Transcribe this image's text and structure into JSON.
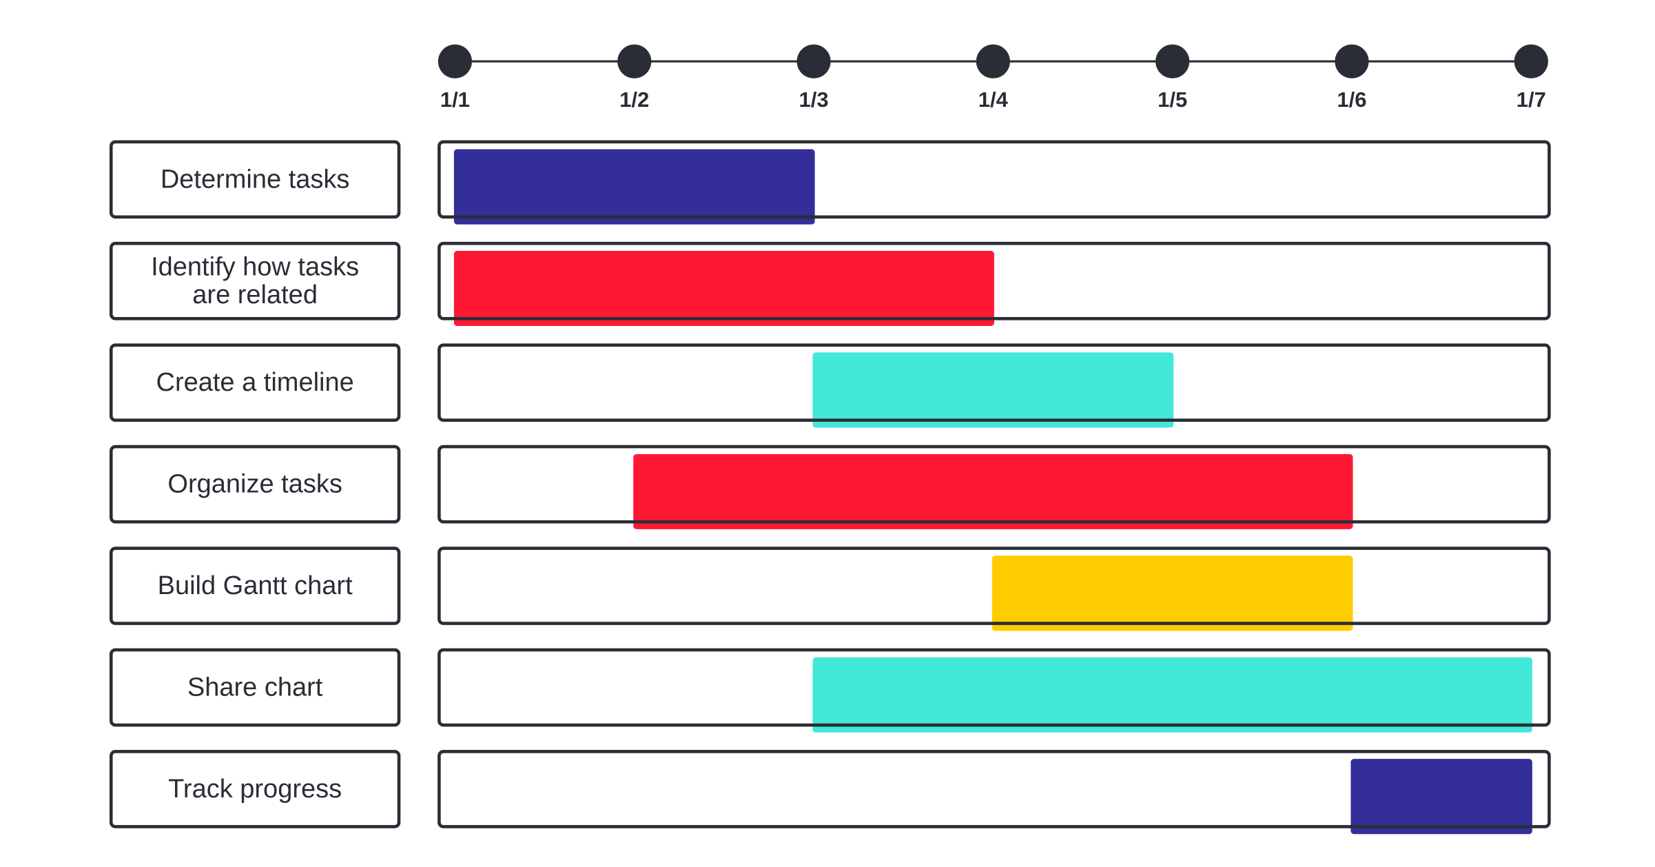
{
  "chart_data": {
    "type": "gantt",
    "title": "",
    "x_ticks": [
      "1/1",
      "1/2",
      "1/3",
      "1/4",
      "1/5",
      "1/6",
      "1/7"
    ],
    "tasks": [
      {
        "label": [
          "Determine tasks"
        ],
        "start": "1/1",
        "end": "1/3",
        "color": "#332e99"
      },
      {
        "label": [
          "Identify how tasks",
          "are related"
        ],
        "start": "1/1",
        "end": "1/4",
        "color": "#ff1834"
      },
      {
        "label": [
          "Create a timeline"
        ],
        "start": "1/3",
        "end": "1/5",
        "color": "#42e8d8"
      },
      {
        "label": [
          "Organize tasks"
        ],
        "start": "1/2",
        "end": "1/6",
        "color": "#ff1834"
      },
      {
        "label": [
          "Build Gantt chart"
        ],
        "start": "1/4",
        "end": "1/6",
        "color": "#ffcc00"
      },
      {
        "label": [
          "Share chart"
        ],
        "start": "1/3",
        "end": "1/7",
        "color": "#42e8d8"
      },
      {
        "label": [
          "Track progress"
        ],
        "start": "1/6",
        "end": "1/7",
        "color": "#332e99"
      }
    ]
  },
  "colors": {
    "ink": "#2b2d36",
    "track_fill": "#ffffff"
  }
}
